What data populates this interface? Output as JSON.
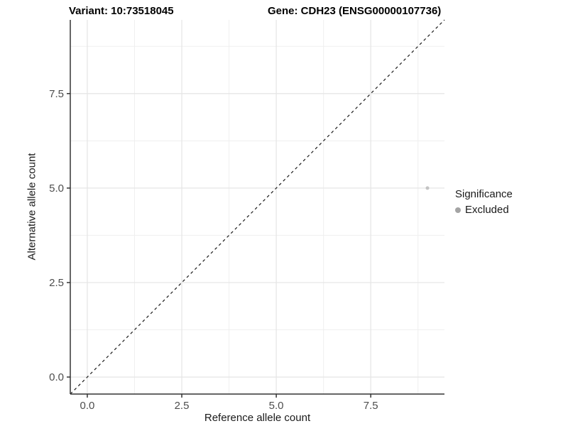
{
  "figure": {
    "title_left": "Variant: 10:73518045",
    "title_right": "Gene: CDH23 (ENSG00000107736)"
  },
  "chart_data": {
    "type": "scatter",
    "title_left": "Variant: 10:73518045",
    "title_right": "Gene: CDH23 (ENSG00000107736)",
    "xlabel": "Reference allele count",
    "ylabel": "Alternative allele count",
    "xlim": [
      -0.45,
      9.45
    ],
    "ylim": [
      -0.45,
      9.45
    ],
    "xticks": {
      "values": [
        0,
        2.5,
        5,
        7.5
      ],
      "labels": [
        "0.0",
        "2.5",
        "5.0",
        "7.5"
      ]
    },
    "yticks": {
      "values": [
        0,
        2.5,
        5,
        7.5
      ],
      "labels": [
        "0.0",
        "2.5",
        "5.0",
        "7.5"
      ]
    },
    "minor_ticks": [
      1.25,
      3.75,
      6.25,
      8.75
    ],
    "grid": {
      "show": true,
      "major_color": "#e6e6e6",
      "minor_color": "#efefef"
    },
    "identity_line": {
      "style": "dashed",
      "slope": 1,
      "intercept": 0,
      "color": "#1a1a1a"
    },
    "series": [
      {
        "name": "Excluded",
        "color": "#c3c3c3",
        "point_radius": 2.5,
        "points": [
          {
            "x": 9,
            "y": 5
          }
        ]
      }
    ],
    "legend": {
      "title": "Significance",
      "position": "right",
      "items": [
        {
          "label": "Excluded",
          "color": "#a4a4a4"
        }
      ]
    },
    "axis_color": "#333333",
    "tick_label_color": "#4d4d4d"
  }
}
